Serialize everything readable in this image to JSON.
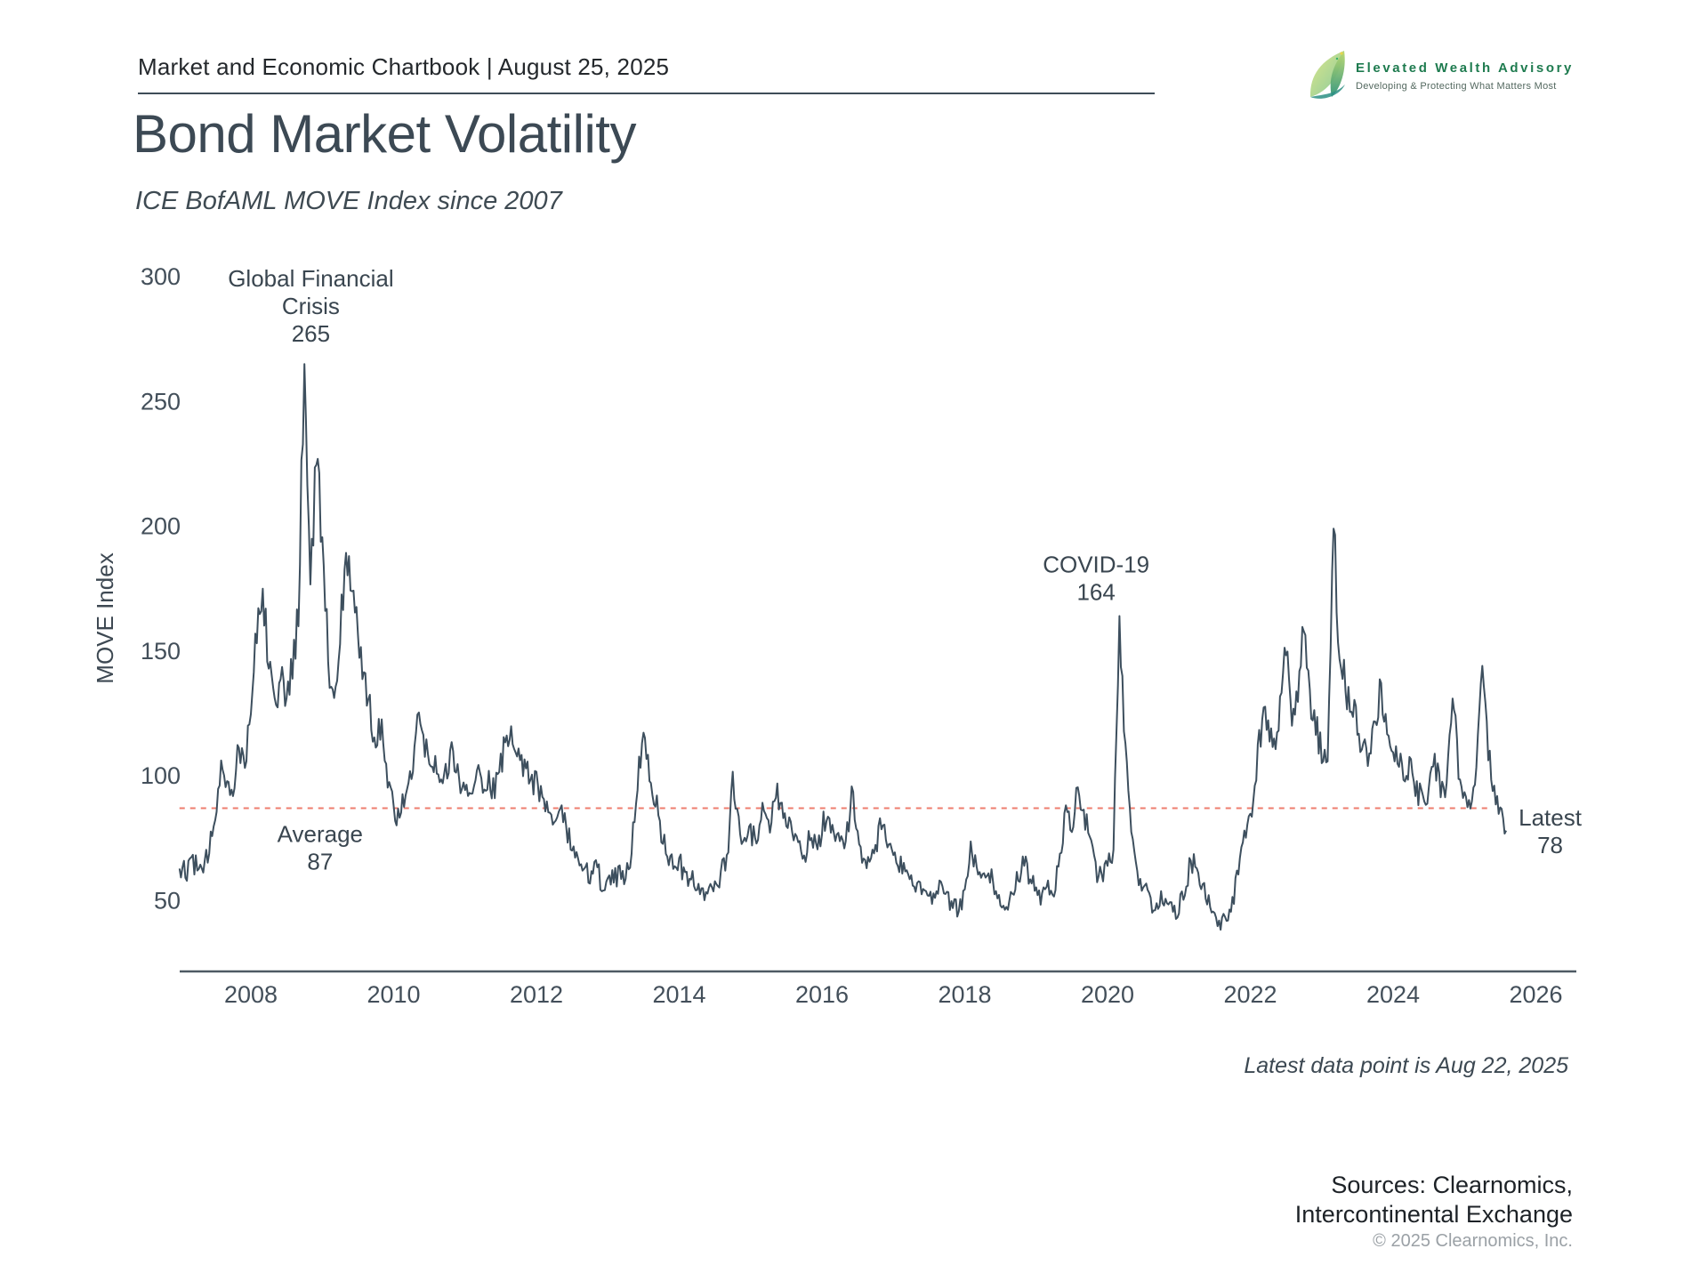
{
  "header": {
    "chartbook_label": "Market and Economic Chartbook | August 25, 2025"
  },
  "logo": {
    "name": "Elevated Wealth Advisory",
    "tagline": "Developing & Protecting What Matters Most",
    "icon": "leaf-swoosh-icon",
    "brand_green": "#1e7b4f"
  },
  "title": "Bond Market Volatility",
  "subtitle": "ICE BofAML MOVE Index since 2007",
  "footer": {
    "latest_note": "Latest data point is Aug 22, 2025",
    "sources_line1": "Sources: Clearnomics,",
    "sources_line2": "Intercontinental Exchange",
    "copyright": "© 2025 Clearnomics, Inc."
  },
  "chart_data": {
    "type": "line",
    "title": "Bond Market Volatility",
    "xlabel": "",
    "ylabel": "MOVE Index",
    "x_ticks": [
      2008,
      2010,
      2012,
      2014,
      2016,
      2018,
      2020,
      2022,
      2024,
      2026
    ],
    "y_ticks": [
      300,
      250,
      200,
      150,
      100,
      50
    ],
    "xlim": [
      2007.0,
      2026.6
    ],
    "ylim": [
      20,
      310
    ],
    "grid": false,
    "legend": "none",
    "colors": {
      "line": "#3d4f5e",
      "average_line": "#ee7d6e",
      "axis": "#4e5a64",
      "tick_label": "#434f5a",
      "annotation": "#3a4650"
    },
    "series": [
      {
        "name": "ICE BofAML MOVE Index",
        "start_year": 2007,
        "interval_months": 1,
        "values": [
          64,
          61,
          67,
          63,
          61,
          70,
          84,
          108,
          97,
          93,
          114,
          106,
          128,
          158,
          176,
          148,
          132,
          138,
          130,
          142,
          165,
          265,
          178,
          224,
          196,
          148,
          128,
          158,
          191,
          176,
          158,
          142,
          128,
          108,
          126,
          98,
          88,
          84,
          95,
          102,
          123,
          115,
          103,
          109,
          96,
          100,
          112,
          99,
          94,
          90,
          102,
          96,
          99,
          92,
          105,
          117,
          112,
          115,
          104,
          98,
          100,
          90,
          85,
          81,
          88,
          78,
          70,
          64,
          62,
          59,
          66,
          56,
          60,
          58,
          62,
          59,
          70,
          98,
          117,
          99,
          91,
          76,
          68,
          63,
          65,
          61,
          58,
          56,
          54,
          53,
          56,
          61,
          66,
          99,
          83,
          73,
          79,
          71,
          86,
          79,
          93,
          89,
          81,
          77,
          72,
          69,
          75,
          71,
          79,
          85,
          77,
          73,
          71,
          94,
          75,
          67,
          65,
          73,
          79,
          73,
          68,
          64,
          62,
          60,
          57,
          54,
          52,
          50,
          55,
          51,
          48,
          47,
          53,
          71,
          65,
          59,
          63,
          55,
          50,
          49,
          53,
          59,
          66,
          59,
          55,
          51,
          57,
          53,
          70,
          85,
          79,
          93,
          87,
          75,
          63,
          59,
          63,
          72,
          164,
          110,
          76,
          62,
          55,
          51,
          47,
          53,
          49,
          45,
          47,
          53,
          67,
          61,
          55,
          51,
          45,
          40,
          43,
          49,
          63,
          77,
          86,
          100,
          124,
          120,
          112,
          130,
          150,
          120,
          130,
          158,
          133,
          120,
          108,
          104,
          199,
          150,
          136,
          130,
          118,
          112,
          106,
          121,
          134,
          114,
          113,
          106,
          99,
          103,
          95,
          89,
          97,
          106,
          93,
          99,
          133,
          101,
          95,
          89,
          103,
          140,
          107,
          97,
          86,
          78
        ]
      }
    ],
    "average": {
      "value": 87,
      "x_start_year": 2007.0,
      "x_end_year": 2025.38,
      "style": "dashed"
    },
    "annotations": [
      {
        "id": "gfc",
        "lines": [
          "Global Financial",
          "Crisis",
          "265"
        ],
        "x_year": 2008.84,
        "top_value": 296.0
      },
      {
        "id": "covid",
        "lines": [
          "COVID-19",
          "164"
        ],
        "x_year": 2019.84,
        "top_value": 181.5
      },
      {
        "id": "average",
        "lines": [
          "Average",
          "87"
        ],
        "x_year": 2008.97,
        "top_value": 73.5
      },
      {
        "id": "latest",
        "lines": [
          "Latest",
          "78"
        ],
        "x_year": 2026.2,
        "top_value": 80.0
      }
    ],
    "texture_noise": {
      "subdivisions": 4,
      "seed": 12,
      "base_amp": 1.6,
      "rel_amp": 0.05,
      "anchor_amp_frac": 0.6,
      "protected_indices": [
        21,
        158,
        194,
        223
      ],
      "clamp": [
        37,
        265.2
      ]
    }
  }
}
